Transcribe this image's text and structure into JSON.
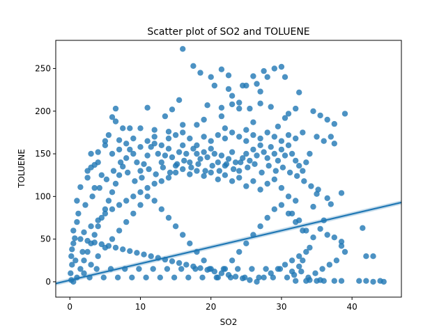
{
  "chart_data": {
    "type": "scatter",
    "title": "Scatter plot of SO2 and TOLUENE",
    "xlabel": "SO2",
    "ylabel": "TOLUENE",
    "xlim": [
      -2,
      47
    ],
    "ylim": [
      -18,
      283
    ],
    "xticks": [
      0,
      10,
      20,
      30,
      40
    ],
    "yticks": [
      0,
      50,
      100,
      150,
      200,
      250
    ],
    "grid": false,
    "legend": "none",
    "point_color": "#1f77b4",
    "point_opacity": 0.8,
    "regression_line": {
      "x": [
        -2,
        47
      ],
      "y": [
        -2,
        93
      ]
    },
    "points": [
      [
        16,
        273
      ],
      [
        17.5,
        253
      ],
      [
        18.5,
        245
      ],
      [
        21.5,
        249
      ],
      [
        22.5,
        242
      ],
      [
        27.5,
        247
      ],
      [
        30,
        252
      ],
      [
        28,
        240
      ],
      [
        26,
        241
      ],
      [
        20,
        240
      ],
      [
        20.5,
        230
      ],
      [
        22.5,
        226
      ],
      [
        23,
        218
      ],
      [
        24.5,
        230
      ],
      [
        24,
        210
      ],
      [
        25,
        230
      ],
      [
        26.5,
        232
      ],
      [
        27,
        223
      ],
      [
        25.5,
        203
      ],
      [
        29,
        250
      ],
      [
        30.5,
        240
      ],
      [
        32.5,
        222
      ],
      [
        31,
        197
      ],
      [
        21.5,
        204
      ],
      [
        23,
        208
      ],
      [
        19.5,
        207
      ],
      [
        15.5,
        213
      ],
      [
        13.5,
        194
      ],
      [
        14.5,
        202
      ],
      [
        11,
        204
      ],
      [
        6.5,
        203
      ],
      [
        6,
        193
      ],
      [
        6.5,
        188
      ],
      [
        7.5,
        180
      ],
      [
        8.5,
        180
      ],
      [
        16,
        184
      ],
      [
        19,
        190
      ],
      [
        21.5,
        194
      ],
      [
        24,
        203
      ],
      [
        27,
        209
      ],
      [
        28.5,
        205
      ],
      [
        30.5,
        192
      ],
      [
        32,
        203
      ],
      [
        34.5,
        200
      ],
      [
        35.5,
        195
      ],
      [
        36.5,
        190
      ],
      [
        37.5,
        185
      ],
      [
        39,
        197
      ],
      [
        29.5,
        182
      ],
      [
        26,
        187
      ],
      [
        25,
        178
      ],
      [
        22,
        180
      ],
      [
        18,
        184
      ],
      [
        14,
        176
      ],
      [
        12,
        178
      ],
      [
        10,
        180
      ],
      [
        5.5,
        172
      ],
      [
        5,
        165
      ],
      [
        7,
        166
      ],
      [
        35,
        170
      ],
      [
        36,
        165
      ],
      [
        37,
        170
      ],
      [
        37.5,
        162
      ],
      [
        4,
        152
      ],
      [
        3.5,
        137
      ],
      [
        3,
        134
      ],
      [
        2.5,
        130
      ],
      [
        4.5,
        125
      ],
      [
        3.5,
        110
      ],
      [
        1.5,
        111
      ],
      [
        2.5,
        122
      ],
      [
        35,
        103
      ],
      [
        36.5,
        98
      ],
      [
        38.5,
        104
      ],
      [
        37,
        91
      ],
      [
        34.5,
        88
      ],
      [
        36,
        72
      ],
      [
        35.5,
        62
      ],
      [
        36.5,
        55
      ],
      [
        37.5,
        52
      ],
      [
        38.5,
        47
      ],
      [
        41.5,
        63
      ],
      [
        38.5,
        42
      ],
      [
        39,
        35
      ],
      [
        42,
        30
      ],
      [
        43,
        30
      ],
      [
        41,
        1
      ],
      [
        42,
        1
      ],
      [
        43,
        0
      ],
      [
        44,
        1
      ],
      [
        44.5,
        0
      ],
      [
        37.5,
        1
      ],
      [
        38.5,
        1
      ],
      [
        35,
        1
      ],
      [
        35.5,
        2
      ],
      [
        33.5,
        1
      ],
      [
        34,
        2
      ],
      [
        36,
        1
      ],
      [
        32,
        1
      ],
      [
        31.5,
        12
      ],
      [
        32.5,
        18
      ],
      [
        33,
        25
      ],
      [
        34,
        40
      ],
      [
        34.5,
        52
      ],
      [
        33.5,
        60
      ],
      [
        32.5,
        72
      ],
      [
        31.5,
        80
      ],
      [
        1,
        95
      ],
      [
        0.7,
        51
      ],
      [
        0.5,
        45
      ],
      [
        0.3,
        38
      ],
      [
        0.2,
        30
      ],
      [
        0.3,
        20
      ],
      [
        0.1,
        10
      ],
      [
        0.2,
        2
      ],
      [
        0.5,
        0
      ],
      [
        1,
        5
      ],
      [
        1.5,
        15
      ],
      [
        2,
        25
      ],
      [
        2.5,
        35
      ],
      [
        3,
        45
      ],
      [
        3.5,
        55
      ],
      [
        4,
        65
      ],
      [
        4.5,
        75
      ],
      [
        5,
        85
      ],
      [
        5.5,
        95
      ],
      [
        6,
        105
      ],
      [
        6.5,
        115
      ],
      [
        7,
        125
      ],
      [
        7.5,
        135
      ],
      [
        8,
        145
      ],
      [
        8.5,
        155
      ],
      [
        9,
        150
      ],
      [
        9.5,
        140
      ],
      [
        10,
        130
      ],
      [
        10.5,
        138
      ],
      [
        11,
        148
      ],
      [
        11.5,
        158
      ],
      [
        12,
        162
      ],
      [
        12.5,
        150
      ],
      [
        13,
        140
      ],
      [
        13.5,
        148
      ],
      [
        14,
        156
      ],
      [
        14.5,
        146
      ],
      [
        15,
        136
      ],
      [
        15.5,
        152
      ],
      [
        16,
        160
      ],
      [
        16.5,
        150
      ],
      [
        17,
        140
      ],
      [
        17.5,
        156
      ],
      [
        18,
        150
      ],
      [
        18.5,
        144
      ],
      [
        19,
        152
      ],
      [
        19.5,
        146
      ],
      [
        20,
        156
      ],
      [
        20.5,
        150
      ],
      [
        21,
        140
      ],
      [
        21.5,
        148
      ],
      [
        22,
        136
      ],
      [
        22.5,
        144
      ],
      [
        23,
        152
      ],
      [
        23.5,
        140
      ],
      [
        24,
        130
      ],
      [
        24.5,
        145
      ],
      [
        25,
        150
      ],
      [
        25.5,
        142
      ],
      [
        26,
        155
      ],
      [
        26.5,
        148
      ],
      [
        27,
        160
      ],
      [
        27.5,
        152
      ],
      [
        28,
        145
      ],
      [
        28.5,
        158
      ],
      [
        29,
        150
      ],
      [
        29.5,
        142
      ],
      [
        30,
        155
      ],
      [
        30.5,
        148
      ],
      [
        31,
        160
      ],
      [
        31.5,
        150
      ],
      [
        32,
        142
      ],
      [
        32.5,
        136
      ],
      [
        33,
        130
      ],
      [
        33.5,
        140
      ],
      [
        34,
        150
      ],
      [
        29,
        120
      ],
      [
        30,
        110
      ],
      [
        31,
        100
      ],
      [
        32,
        95
      ],
      [
        28,
        115
      ],
      [
        27,
        108
      ],
      [
        26,
        118
      ],
      [
        25,
        112
      ],
      [
        24,
        122
      ],
      [
        23,
        118
      ],
      [
        22,
        125
      ],
      [
        21,
        120
      ],
      [
        20,
        128
      ],
      [
        19,
        124
      ],
      [
        18,
        130
      ],
      [
        17,
        126
      ],
      [
        16,
        132
      ],
      [
        15,
        128
      ],
      [
        14,
        122
      ],
      [
        13,
        118
      ],
      [
        12,
        115
      ],
      [
        11,
        110
      ],
      [
        10,
        105
      ],
      [
        9,
        100
      ],
      [
        8,
        95
      ],
      [
        7,
        90
      ],
      [
        6,
        85
      ],
      [
        5,
        80
      ],
      [
        4,
        72
      ],
      [
        3,
        65
      ],
      [
        2,
        58
      ],
      [
        1.5,
        50
      ],
      [
        2.5,
        48
      ],
      [
        3.5,
        46
      ],
      [
        4.5,
        44
      ],
      [
        5.5,
        42
      ],
      [
        6.5,
        40
      ],
      [
        7.5,
        38
      ],
      [
        8.5,
        36
      ],
      [
        9.5,
        34
      ],
      [
        10.5,
        32
      ],
      [
        11.5,
        30
      ],
      [
        12.5,
        28
      ],
      [
        13.5,
        26
      ],
      [
        14.5,
        24
      ],
      [
        15.5,
        22
      ],
      [
        16.5,
        20
      ],
      [
        17.5,
        18
      ],
      [
        18.5,
        16
      ],
      [
        19.5,
        14
      ],
      [
        20.5,
        12
      ],
      [
        21.5,
        10
      ],
      [
        22.5,
        8
      ],
      [
        23.5,
        6
      ],
      [
        24.5,
        4
      ],
      [
        25.5,
        2
      ],
      [
        26.5,
        0
      ],
      [
        27.5,
        5
      ],
      [
        28.5,
        10
      ],
      [
        29.5,
        15
      ],
      [
        30.5,
        20
      ],
      [
        31.5,
        25
      ],
      [
        32.5,
        30
      ],
      [
        33.5,
        35
      ],
      [
        2,
        10
      ],
      [
        3,
        20
      ],
      [
        4,
        30
      ],
      [
        5,
        40
      ],
      [
        6,
        50
      ],
      [
        7,
        60
      ],
      [
        8,
        70
      ],
      [
        9,
        80
      ],
      [
        10,
        90
      ],
      [
        11,
        100
      ],
      [
        12,
        95
      ],
      [
        13,
        85
      ],
      [
        14,
        75
      ],
      [
        15,
        65
      ],
      [
        16,
        55
      ],
      [
        17,
        45
      ],
      [
        18,
        35
      ],
      [
        19,
        25
      ],
      [
        20,
        15
      ],
      [
        21,
        5
      ],
      [
        22,
        15
      ],
      [
        23,
        25
      ],
      [
        24,
        35
      ],
      [
        25,
        45
      ],
      [
        26,
        55
      ],
      [
        27,
        65
      ],
      [
        28,
        75
      ],
      [
        29,
        85
      ],
      [
        30,
        90
      ],
      [
        31,
        80
      ],
      [
        32,
        70
      ],
      [
        33,
        60
      ],
      [
        1,
        70
      ],
      [
        1.2,
        80
      ],
      [
        2.2,
        90
      ],
      [
        3.2,
        100
      ],
      [
        4.2,
        110
      ],
      [
        5.2,
        120
      ],
      [
        6.2,
        130
      ],
      [
        7.2,
        140
      ],
      [
        8.2,
        128
      ],
      [
        9.2,
        118
      ],
      [
        10.2,
        122
      ],
      [
        11.2,
        132
      ],
      [
        12.2,
        126
      ],
      [
        13.2,
        134
      ],
      [
        14.2,
        128
      ],
      [
        15.2,
        138
      ],
      [
        16.2,
        142
      ],
      [
        17.2,
        134
      ],
      [
        18.2,
        138
      ],
      [
        19.2,
        130
      ],
      [
        20.2,
        136
      ],
      [
        21.2,
        130
      ],
      [
        22.2,
        138
      ],
      [
        23.2,
        132
      ],
      [
        24.2,
        140
      ],
      [
        25.2,
        134
      ],
      [
        26.2,
        138
      ],
      [
        27.2,
        128
      ],
      [
        28.2,
        136
      ],
      [
        29.2,
        130
      ],
      [
        30.2,
        134
      ],
      [
        31.2,
        128
      ],
      [
        32.2,
        124
      ],
      [
        33.2,
        118
      ],
      [
        34.2,
        112
      ],
      [
        35.2,
        108
      ],
      [
        0.5,
        60
      ],
      [
        0.8,
        25
      ],
      [
        1.8,
        35
      ],
      [
        2.8,
        5
      ],
      [
        3.8,
        15
      ],
      [
        4.8,
        5
      ],
      [
        5.8,
        15
      ],
      [
        6.8,
        5
      ],
      [
        7.8,
        15
      ],
      [
        8.8,
        5
      ],
      [
        9.8,
        15
      ],
      [
        10.8,
        5
      ],
      [
        11.8,
        15
      ],
      [
        12.8,
        5
      ],
      [
        13.8,
        15
      ],
      [
        14.8,
        5
      ],
      [
        15.8,
        15
      ],
      [
        16.8,
        5
      ],
      [
        17.8,
        15
      ],
      [
        18.8,
        5
      ],
      [
        19.8,
        15
      ],
      [
        20.8,
        5
      ],
      [
        21.8,
        15
      ],
      [
        22.8,
        5
      ],
      [
        23.8,
        15
      ],
      [
        24.8,
        5
      ],
      [
        25.8,
        15
      ],
      [
        26.8,
        5
      ],
      [
        27.8,
        15
      ],
      [
        28.8,
        5
      ],
      [
        29.8,
        15
      ],
      [
        30.8,
        5
      ],
      [
        31.8,
        8
      ],
      [
        32.8,
        12
      ],
      [
        33.8,
        5
      ],
      [
        34.8,
        10
      ],
      [
        35.8,
        15
      ],
      [
        36.8,
        20
      ],
      [
        37.8,
        25
      ],
      [
        3,
        150
      ],
      [
        4,
        140
      ],
      [
        5,
        160
      ],
      [
        6,
        150
      ],
      [
        7,
        155
      ],
      [
        8,
        162
      ],
      [
        9,
        168
      ],
      [
        10,
        158
      ],
      [
        11,
        165
      ],
      [
        12,
        170
      ],
      [
        13,
        160
      ],
      [
        14,
        168
      ],
      [
        15,
        172
      ],
      [
        16,
        175
      ],
      [
        17,
        168
      ],
      [
        18,
        160
      ],
      [
        19,
        170
      ],
      [
        20,
        165
      ],
      [
        21,
        172
      ],
      [
        22,
        168
      ],
      [
        23,
        175
      ],
      [
        24,
        170
      ],
      [
        25,
        165
      ],
      [
        26,
        172
      ],
      [
        27,
        168
      ],
      [
        28,
        175
      ],
      [
        29,
        170
      ],
      [
        30,
        165
      ],
      [
        31,
        172
      ],
      [
        32,
        168
      ],
      [
        33,
        175
      ]
    ]
  }
}
